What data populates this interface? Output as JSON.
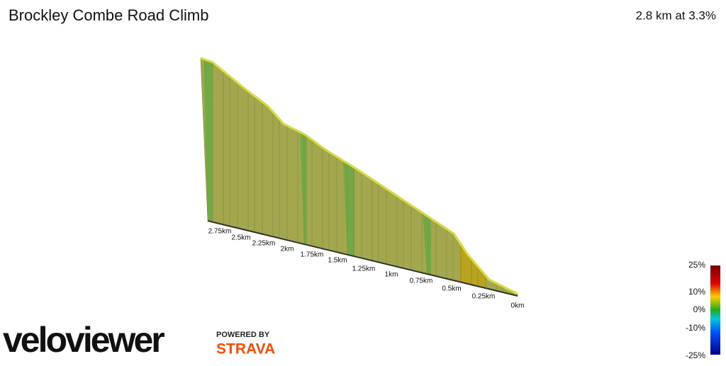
{
  "header": {
    "title": "Brockley Combe Road Climb",
    "summary": "2.8 km at 3.3%"
  },
  "distance_axis": {
    "labels": [
      "2.75km",
      "2.5km",
      "2.25km",
      "2km",
      "1.75km",
      "1.5km",
      "1.25km",
      "1km",
      "0.75km",
      "0.5km",
      "0.25km",
      "0km"
    ]
  },
  "gradient_scale": {
    "labels": [
      "25%",
      "10%",
      "0%",
      "-10%",
      "-25%"
    ]
  },
  "branding": {
    "logo": "veloviewer",
    "powered_by": "POWERED BY",
    "partner": "STRAVA"
  }
}
